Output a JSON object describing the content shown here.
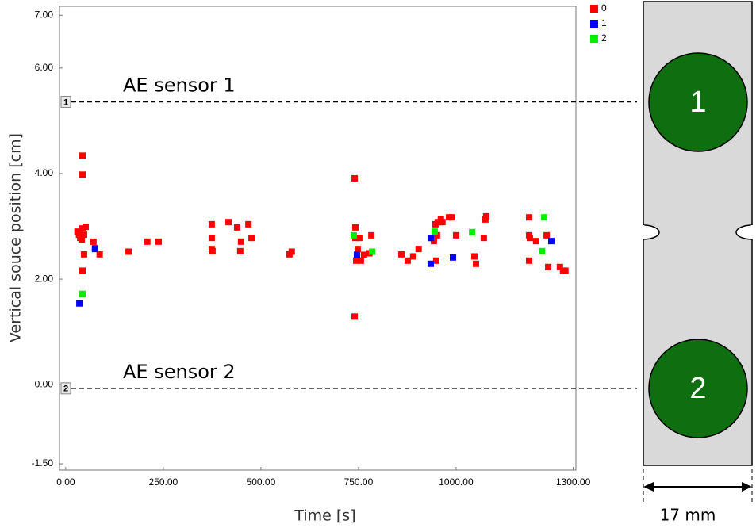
{
  "chart_data": {
    "type": "scatter",
    "x_label": "Time [s]",
    "y_label": "Vertical souce position  [cm]",
    "xlim": [
      -16,
      1307
    ],
    "ylim": [
      -1.62,
      7.17
    ],
    "xticks": [
      {
        "value": 0,
        "label": "0.00"
      },
      {
        "value": 250,
        "label": "250.00"
      },
      {
        "value": 500,
        "label": "500.00"
      },
      {
        "value": 750,
        "label": "750.00"
      },
      {
        "value": 1000,
        "label": "1000.00"
      },
      {
        "value": 1300,
        "label": "1300.00"
      }
    ],
    "yticks": [
      {
        "value": 7,
        "label": "7.00"
      },
      {
        "value": 6,
        "label": "6.00"
      },
      {
        "value": 4,
        "label": "4.00"
      },
      {
        "value": 2,
        "label": "2.00"
      },
      {
        "value": 0,
        "label": "0.00"
      },
      {
        "value": -1.5,
        "label": "-1.50"
      }
    ],
    "grid": false,
    "legend": "top-right",
    "annotations": [
      {
        "label": "AE sensor 1",
        "marker": "1",
        "y": 5.36
      },
      {
        "label": "AE sensor 2",
        "marker": "2",
        "y": -0.07
      }
    ],
    "series": [
      {
        "name": "0",
        "color": "#ff0000",
        "x": [
          30,
          34,
          37,
          43,
          47,
          51,
          41,
          43,
          43,
          43,
          47,
          71,
          75,
          87,
          161,
          209,
          238,
          374,
          374,
          374,
          376,
          417,
          439,
          449,
          447,
          468,
          476,
          573,
          579,
          740,
          740,
          742,
          742,
          748,
          744,
          756,
          752,
          764,
          783,
          778,
          860,
          876,
          890,
          904,
          937,
          943,
          947,
          951,
          953,
          949,
          961,
          965,
          982,
          990,
          1000,
          1047,
          1051,
          1071,
          1075,
          1077,
          1187,
          1187,
          1189,
          1187,
          1205,
          1232,
          1236,
          1266,
          1274,
          1280
        ],
        "values": [
          2.9,
          2.84,
          2.78,
          2.96,
          2.84,
          2.99,
          2.75,
          4.34,
          3.98,
          2.16,
          2.47,
          2.71,
          2.59,
          2.47,
          2.52,
          2.71,
          2.71,
          3.04,
          2.78,
          2.57,
          2.53,
          3.08,
          2.98,
          2.71,
          2.53,
          3.04,
          2.78,
          2.47,
          2.52,
          3.91,
          1.29,
          2.98,
          2.78,
          2.57,
          2.35,
          2.35,
          2.78,
          2.46,
          2.83,
          2.49,
          2.47,
          2.35,
          2.43,
          2.57,
          2.78,
          2.72,
          3.04,
          2.83,
          3.08,
          2.35,
          3.14,
          3.08,
          3.17,
          3.17,
          2.83,
          2.43,
          2.29,
          2.78,
          3.13,
          3.19,
          3.17,
          2.83,
          2.78,
          2.35,
          2.72,
          2.83,
          2.23,
          2.23,
          2.16,
          2.16
        ]
      },
      {
        "name": "1",
        "color": "#0000ff",
        "x": [
          35,
          75,
          746,
          935,
          935,
          992,
          1244
        ],
        "values": [
          1.54,
          2.57,
          2.46,
          2.29,
          2.78,
          2.41,
          2.72
        ]
      },
      {
        "name": "2",
        "color": "#00ee00",
        "x": [
          43,
          738,
          785,
          945,
          1041,
          1226,
          1220
        ],
        "values": [
          1.72,
          2.83,
          2.52,
          2.9,
          2.89,
          3.17,
          2.53
        ]
      }
    ]
  },
  "diagram": {
    "sensor_labels": [
      "1",
      "2"
    ],
    "width_label": "17 mm"
  }
}
